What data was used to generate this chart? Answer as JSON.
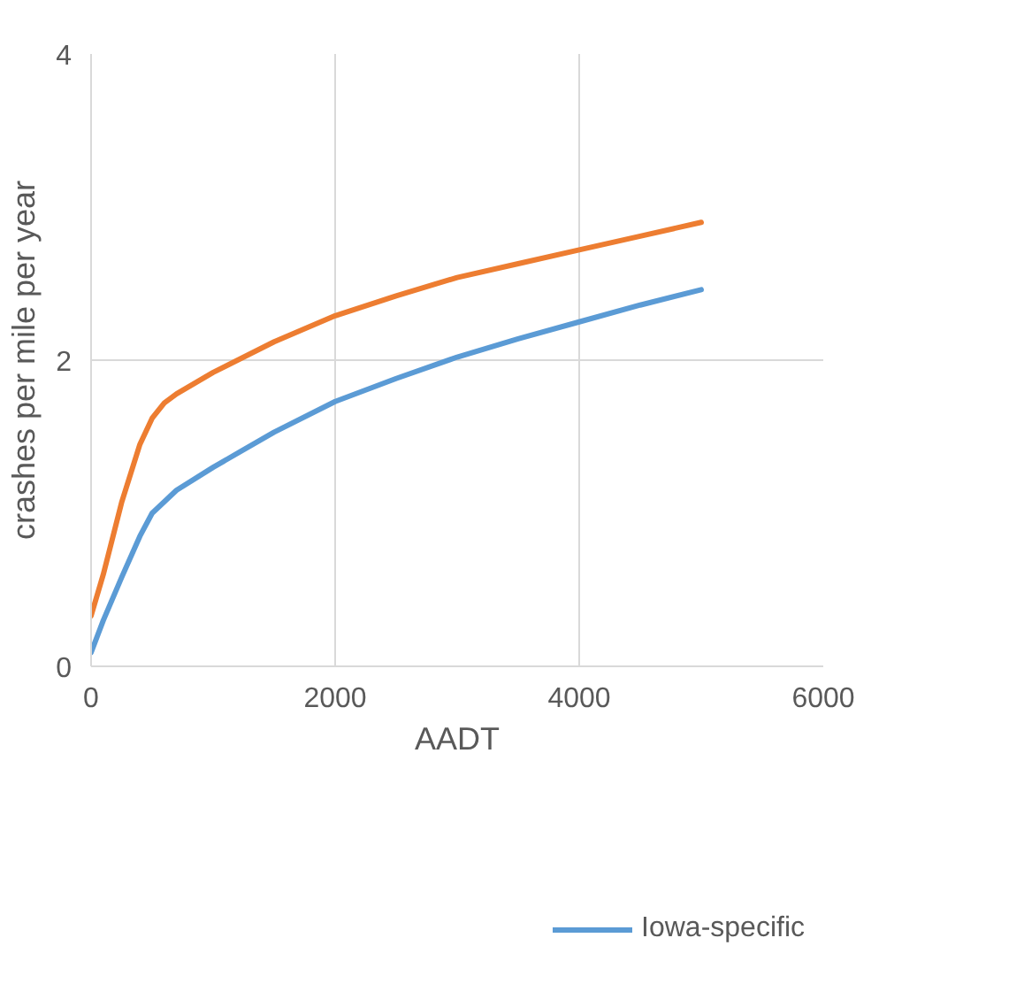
{
  "chart_data": {
    "type": "line",
    "xlabel": "AADT",
    "ylabel": "crashes per mile per year",
    "xlim": [
      0,
      6000
    ],
    "xticks": [
      0,
      2000,
      4000,
      6000
    ],
    "ylim": [
      0,
      4
    ],
    "yticks": [
      0,
      2,
      4
    ],
    "grid": true,
    "legend": "bottom",
    "line_style": "solid",
    "series": [
      {
        "name": "Iowa-specific",
        "color": "#5b9bd5",
        "x": [
          0,
          100,
          250,
          400,
          500,
          700,
          1000,
          1500,
          2000,
          2500,
          3000,
          3500,
          4000,
          4500,
          5000
        ],
        "values": [
          0.09,
          0.3,
          0.58,
          0.85,
          1.0,
          1.15,
          1.3,
          1.53,
          1.73,
          1.88,
          2.02,
          2.14,
          2.25,
          2.36,
          2.46
        ]
      },
      {
        "color": "#ed7d31",
        "x": [
          0,
          100,
          250,
          400,
          500,
          600,
          700,
          1000,
          1500,
          2000,
          2500,
          3000,
          3500,
          4000,
          4500,
          5000
        ],
        "values": [
          0.33,
          0.6,
          1.07,
          1.45,
          1.62,
          1.72,
          1.78,
          1.92,
          2.12,
          2.29,
          2.42,
          2.54,
          2.63,
          2.72,
          2.81,
          2.9
        ]
      }
    ]
  }
}
